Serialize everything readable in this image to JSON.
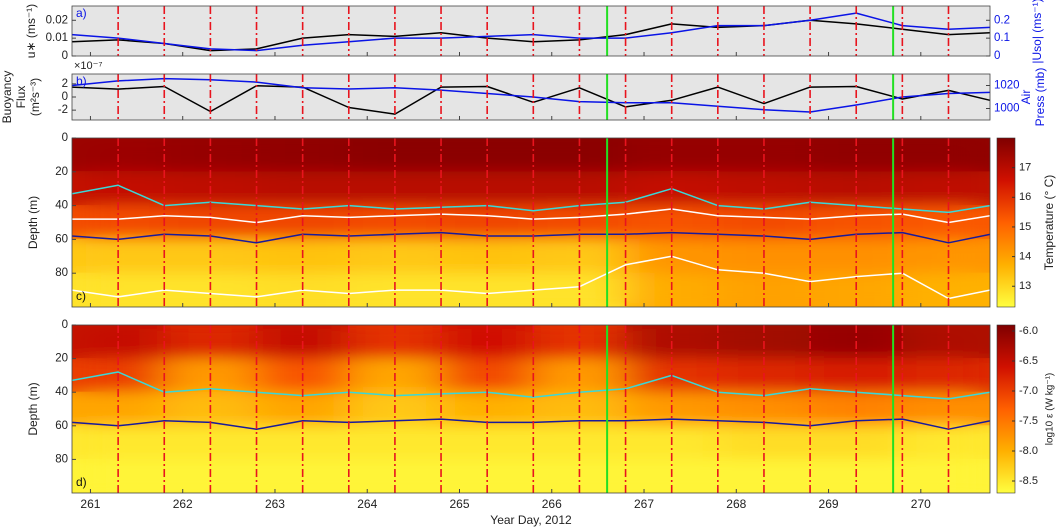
{
  "events": {
    "red_dashed": {
      "color": "#e8141e",
      "x": [
        261.3,
        261.8,
        262.3,
        262.8,
        263.3,
        263.8,
        264.3,
        264.8,
        265.3,
        265.8,
        266.3,
        266.8,
        267.3,
        267.8,
        268.3,
        268.8,
        269.3,
        269.8,
        270.3
      ]
    },
    "green": {
      "color": "#22e022",
      "x": [
        266.6,
        269.7
      ]
    }
  },
  "chart_data": [
    {
      "type": "line",
      "panel_label": "a)",
      "ylabel": [
        "u∗ (ms⁻¹)"
      ],
      "y2label": [
        "|Uso| (ms⁻¹)"
      ],
      "background": "#e5e5e5",
      "xlim": [
        260.8,
        270.75
      ],
      "ylim": [
        0,
        0.028
      ],
      "yticks": [
        0,
        0.01,
        0.02
      ],
      "y2lim": [
        0,
        0.28
      ],
      "y2ticks": [
        0,
        0.1,
        0.2
      ],
      "x": [
        260.8,
        261.3,
        261.8,
        262.3,
        262.8,
        263.3,
        263.8,
        264.3,
        264.8,
        265.3,
        265.8,
        266.3,
        266.8,
        267.3,
        267.8,
        268.3,
        268.8,
        269.3,
        269.8,
        270.3,
        270.75
      ],
      "series": [
        {
          "color": "#000000",
          "values": [
            0.008,
            0.009,
            0.007,
            0.003,
            0.004,
            0.01,
            0.012,
            0.011,
            0.013,
            0.01,
            0.008,
            0.009,
            0.012,
            0.018,
            0.016,
            0.017,
            0.02,
            0.018,
            0.015,
            0.012,
            0.013
          ]
        },
        {
          "color": "#0a14e6",
          "axis": "y2",
          "values": [
            0.12,
            0.1,
            0.07,
            0.04,
            0.03,
            0.06,
            0.08,
            0.1,
            0.1,
            0.11,
            0.12,
            0.1,
            0.1,
            0.13,
            0.17,
            0.17,
            0.2,
            0.24,
            0.17,
            0.15,
            0.16
          ]
        }
      ]
    },
    {
      "type": "line",
      "panel_label": "b)",
      "ylabel": [
        "Buoyancy",
        "Flux",
        "(m²s⁻³)"
      ],
      "y2label": [
        "Air",
        "Press (mb)"
      ],
      "multiplier": "×10⁻⁷",
      "background": "#e5e5e5",
      "xlim": [
        260.8,
        270.75
      ],
      "ylim": [
        -3.5,
        3.5
      ],
      "yticks": [
        -2,
        0,
        2
      ],
      "y2lim": [
        990,
        1030
      ],
      "y2ticks": [
        1000,
        1020
      ],
      "x": [
        260.8,
        261.3,
        261.8,
        262.3,
        262.8,
        263.3,
        263.8,
        264.3,
        264.8,
        265.3,
        265.8,
        266.3,
        266.8,
        267.3,
        267.8,
        268.3,
        268.8,
        269.3,
        269.8,
        270.3,
        270.75
      ],
      "series": [
        {
          "color": "#000000",
          "values": [
            1.5,
            1.2,
            1.6,
            -2.2,
            1.7,
            1.5,
            -1.6,
            -2.6,
            1.5,
            1.6,
            -0.8,
            1.4,
            -1.5,
            -0.5,
            1.5,
            -1.0,
            1.5,
            1.6,
            -0.3,
            1.0,
            -0.5
          ]
        },
        {
          "color": "#0a14e6",
          "axis": "y2",
          "values": [
            1020,
            1024,
            1026,
            1025,
            1023,
            1018,
            1017,
            1018,
            1016,
            1013,
            1010,
            1006,
            1005,
            1005,
            1002,
            999,
            997,
            1003,
            1010,
            1013,
            1014
          ]
        }
      ]
    },
    {
      "type": "heatmap",
      "panel_label": "c)",
      "ylabel": [
        "Depth (m)"
      ],
      "clabel": "Temperature (° C)",
      "xlim": [
        260.8,
        270.75
      ],
      "ylim": [
        0,
        100
      ],
      "yticks": [
        0,
        20,
        40,
        60,
        80
      ],
      "clim": [
        12.3,
        18
      ],
      "cticks": [
        13,
        14,
        15,
        16,
        17
      ],
      "colormap": [
        "#ffff40",
        "#ffb000",
        "#ff6000",
        "#d01000",
        "#800000"
      ],
      "z_x": [
        260.8,
        261.8,
        262.8,
        263.8,
        264.8,
        265.8,
        266.8,
        267.8,
        268.8,
        269.8,
        270.75
      ],
      "z_y": [
        0,
        20,
        40,
        60,
        80,
        100
      ],
      "z": [
        [
          17.5,
          17.6,
          17.7,
          17.8,
          17.8,
          17.8,
          17.6,
          17.6,
          17.7,
          17.7
        ],
        [
          16.8,
          16.9,
          17,
          17,
          17,
          17,
          16.8,
          16.9,
          17,
          16.9
        ],
        [
          15.5,
          15.6,
          15.6,
          15.5,
          15.6,
          15.5,
          15.4,
          15.5,
          15.4,
          15.3
        ],
        [
          13.3,
          13.3,
          13.4,
          13.3,
          13.4,
          13.3,
          14.2,
          14.3,
          14.3,
          14.2
        ],
        [
          12.8,
          12.8,
          12.9,
          12.8,
          12.8,
          12.8,
          13.8,
          14,
          13.9,
          13.7
        ]
      ],
      "x": [
        260.8,
        261.3,
        261.8,
        262.3,
        262.8,
        263.3,
        263.8,
        264.3,
        264.8,
        265.3,
        265.8,
        266.3,
        266.8,
        267.3,
        267.8,
        268.3,
        268.8,
        269.3,
        269.8,
        270.3,
        270.75
      ],
      "series": [
        {
          "color": "#ffffff",
          "values": [
            48,
            48,
            46,
            47,
            50,
            46,
            47,
            46,
            45,
            46,
            48,
            47,
            45,
            42,
            46,
            47,
            48,
            46,
            45,
            50,
            46
          ]
        },
        {
          "color": "#ffffff",
          "values": [
            90,
            94,
            90,
            92,
            94,
            90,
            92,
            90,
            90,
            92,
            90,
            88,
            75,
            70,
            78,
            80,
            85,
            82,
            80,
            95,
            90
          ]
        },
        {
          "color": "#3ad8d8",
          "values": [
            33,
            28,
            40,
            38,
            40,
            42,
            40,
            42,
            41,
            40,
            43,
            40,
            38,
            30,
            40,
            42,
            38,
            40,
            42,
            44,
            40
          ]
        },
        {
          "color": "#1a1a9a",
          "values": [
            58,
            60,
            57,
            58,
            62,
            57,
            58,
            57,
            56,
            58,
            58,
            57,
            57,
            56,
            57,
            58,
            60,
            57,
            56,
            62,
            57
          ]
        }
      ]
    },
    {
      "type": "heatmap",
      "panel_label": "d)",
      "ylabel": [
        "Depth (m)"
      ],
      "clabel": "log10 ε (W kg⁻¹)",
      "xlabel": "Year Day, 2012",
      "xlim": [
        260.8,
        270.75
      ],
      "xticks": [
        261,
        262,
        263,
        264,
        265,
        266,
        267,
        268,
        269,
        270
      ],
      "ylim": [
        0,
        100
      ],
      "yticks": [
        0,
        20,
        40,
        60,
        80
      ],
      "clim": [
        -8.7,
        -5.9
      ],
      "cticks": [
        {
          "value": -6,
          "label": "-6.0"
        },
        -6.5,
        {
          "value": -7,
          "label": "-7.0"
        },
        -7.5,
        {
          "value": -8,
          "label": "-8.0"
        },
        -8.5
      ],
      "colormap": [
        "#ffff40",
        "#ffb000",
        "#ff6000",
        "#d01000",
        "#800000"
      ],
      "z_x": [
        260.8,
        261.8,
        262.8,
        263.8,
        264.8,
        265.8,
        266.8,
        267.8,
        268.8,
        269.8,
        270.75
      ],
      "z_y": [
        0,
        20,
        40,
        60,
        80,
        100
      ],
      "z": [
        [
          -6.5,
          -6.8,
          -6.5,
          -6.9,
          -6.6,
          -6.9,
          -6.3,
          -6.2,
          -6.1,
          -6.3
        ],
        [
          -7,
          -7.8,
          -7.2,
          -7.9,
          -7.1,
          -7.8,
          -6.9,
          -6.8,
          -6.7,
          -6.8
        ],
        [
          -7.9,
          -8.1,
          -7.9,
          -8.2,
          -8,
          -8.1,
          -7.8,
          -7.7,
          -7.6,
          -7.7
        ],
        [
          -8.5,
          -8.5,
          -8.5,
          -8.5,
          -8.5,
          -8.5,
          -8.5,
          -8.4,
          -8.4,
          -8.5
        ],
        [
          -8.6,
          -8.6,
          -8.6,
          -8.6,
          -8.6,
          -8.6,
          -8.6,
          -8.6,
          -8.6,
          -8.6
        ]
      ],
      "x": [
        260.8,
        261.3,
        261.8,
        262.3,
        262.8,
        263.3,
        263.8,
        264.3,
        264.8,
        265.3,
        265.8,
        266.3,
        266.8,
        267.3,
        267.8,
        268.3,
        268.8,
        269.3,
        269.8,
        270.3,
        270.75
      ],
      "series": [
        {
          "color": "#3ad8d8",
          "values": [
            33,
            28,
            40,
            38,
            40,
            42,
            40,
            42,
            41,
            40,
            43,
            40,
            38,
            30,
            40,
            42,
            38,
            40,
            42,
            44,
            40
          ]
        },
        {
          "color": "#1a1a9a",
          "values": [
            58,
            60,
            57,
            58,
            62,
            57,
            58,
            57,
            56,
            58,
            58,
            57,
            57,
            56,
            57,
            58,
            60,
            57,
            56,
            62,
            57
          ]
        }
      ]
    }
  ]
}
